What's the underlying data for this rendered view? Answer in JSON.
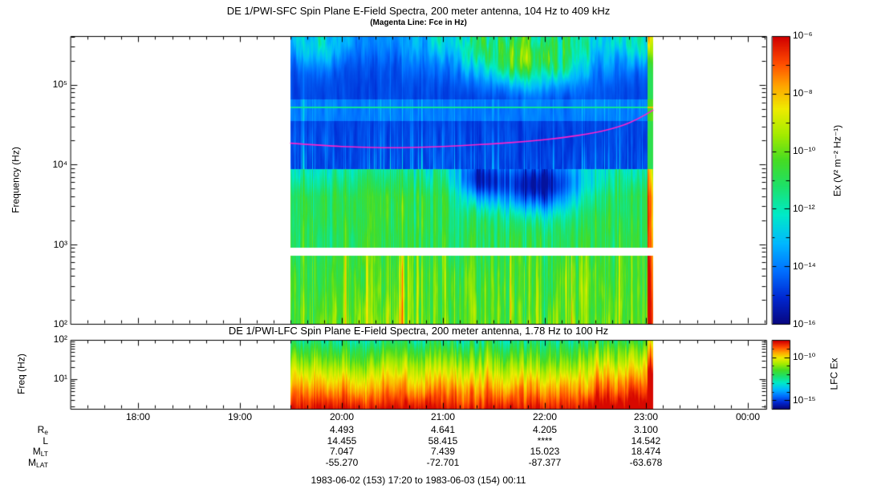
{
  "figure": {
    "background": "#ffffff",
    "footer": "1983-06-02 (153) 17:20 to 1983-06-03 (154) 00:11"
  },
  "sfc": {
    "title": "DE 1/PWI-SFC  Spin Plane E-Field Spectra, 200 meter antenna, 104 Hz to 409 kHz",
    "subtitle": "(Magenta Line: Fce in Hz)",
    "ylabel": "Frequency (Hz)",
    "yticks": [
      "10⁵",
      "10⁴",
      "10³",
      "10²"
    ],
    "colorbar": {
      "label": "Ex (V² m⁻² Hz⁻¹)",
      "ticks": [
        "10⁻⁶",
        "10⁻⁸",
        "10⁻¹⁰",
        "10⁻¹²",
        "10⁻¹⁴",
        "10⁻¹⁶"
      ]
    }
  },
  "lfc": {
    "title": "DE 1/PWI-LFC  Spin Plane E-Field Spectra, 200 meter antenna, 1.78 Hz to 100 Hz",
    "ylabel": "Freq (Hz)",
    "yticks": [
      "10²",
      "10¹"
    ],
    "colorbar": {
      "label": "LFC Ex",
      "ticks": [
        "10⁻¹⁰",
        "10⁻¹⁵"
      ]
    }
  },
  "xaxis": {
    "ticks": [
      "18:00",
      "19:00",
      "20:00",
      "21:00",
      "22:00",
      "23:00",
      "00:00"
    ]
  },
  "ephemeris": {
    "rows": [
      {
        "label_main": "R",
        "label_sub": "e",
        "values": [
          "4.493",
          "4.641",
          "4.205",
          "3.100"
        ]
      },
      {
        "label_main": "L",
        "label_sub": "",
        "values": [
          "14.455",
          "58.415",
          "****",
          "14.542"
        ]
      },
      {
        "label_main": "M",
        "label_sub": "LT",
        "values": [
          "7.047",
          "7.439",
          "15.023",
          "18.474"
        ]
      },
      {
        "label_main": "M",
        "label_sub": "LAT",
        "values": [
          "-55.270",
          "-72.701",
          "-87.377",
          "-63.678"
        ]
      }
    ]
  },
  "chart_data": [
    {
      "type": "heatmap",
      "title": "DE 1/PWI-SFC  Spin Plane E-Field Spectra, 200 meter antenna, 104 Hz to 409 kHz",
      "subtitle": "(Magenta Line: Fce in Hz)",
      "ylabel": "Frequency (Hz)",
      "y_scale": "log",
      "y_range_hz": [
        104,
        409000
      ],
      "y_tick_labels": [
        "10⁵",
        "10⁴",
        "10³",
        "10²"
      ],
      "x_range": [
        "1983-06-02 17:20",
        "1983-06-03 00:11"
      ],
      "x_tick_labels": [
        "18:00",
        "19:00",
        "20:00",
        "21:00",
        "22:00",
        "23:00",
        "00:00"
      ],
      "x_total_minutes": 411,
      "data_coverage": [
        "19:30",
        "23:04"
      ],
      "data_coverage_min": [
        130,
        344
      ],
      "colorbar_label": "Ex (V² m⁻² Hz⁻¹)",
      "colorbar_range": [
        "1e-16",
        "1e-6"
      ],
      "colorbar_tick_labels": [
        "10⁻⁶",
        "10⁻⁸",
        "10⁻¹⁰",
        "10⁻¹²",
        "10⁻¹⁴",
        "10⁻¹⁶"
      ],
      "colormap": "rainbow (dark blue weak to red intense)",
      "overlay_line": {
        "name": "Fce (electron cyclotron frequency)",
        "color": "#ff22cc",
        "points_min_hz": [
          [
            130,
            18500
          ],
          [
            150,
            17200
          ],
          [
            170,
            16500
          ],
          [
            190,
            16200
          ],
          [
            210,
            16500
          ],
          [
            230,
            17200
          ],
          [
            250,
            18200
          ],
          [
            270,
            19500
          ],
          [
            290,
            21500
          ],
          [
            310,
            25000
          ],
          [
            325,
            30000
          ],
          [
            335,
            37000
          ],
          [
            344,
            48000
          ]
        ]
      },
      "features": [
        "broadband intense emission (green-yellow) from 104 Hz up to ~8 kHz across the data interval",
        "white horizontal data-gap band just below 1 kHz",
        "dark-blue weak background 10-100 kHz with scattered vertical cyan streaks",
        "green/yellow patches near 100-409 kHz, strongest ~20:50-22:40",
        "thin cyan horizontal line near 50 kHz",
        "bright rainbow edge column at end of data ~23:04",
        "no data (white) before 19:30 and after 23:04"
      ]
    },
    {
      "type": "heatmap",
      "title": "DE 1/PWI-LFC  Spin Plane E-Field Spectra, 200 meter antenna, 1.78 Hz to 100 Hz",
      "ylabel": "Freq (Hz)",
      "y_scale": "log",
      "y_range_hz": [
        1.78,
        100
      ],
      "y_tick_labels": [
        "10²",
        "10¹"
      ],
      "x_total_minutes": 411,
      "data_coverage": [
        "19:30",
        "23:04"
      ],
      "data_coverage_min": [
        130,
        344
      ],
      "colorbar_label": "LFC Ex",
      "colorbar_tick_labels": [
        "10⁻¹⁰",
        "10⁻¹⁵"
      ],
      "features": [
        "intensity increases toward lower frequency: green near 100 Hz, yellow ~20 Hz, orange-red below ~8 Hz",
        "vertical striations throughout; deepest red after ~22:30 and at end-of-data edge"
      ]
    }
  ]
}
